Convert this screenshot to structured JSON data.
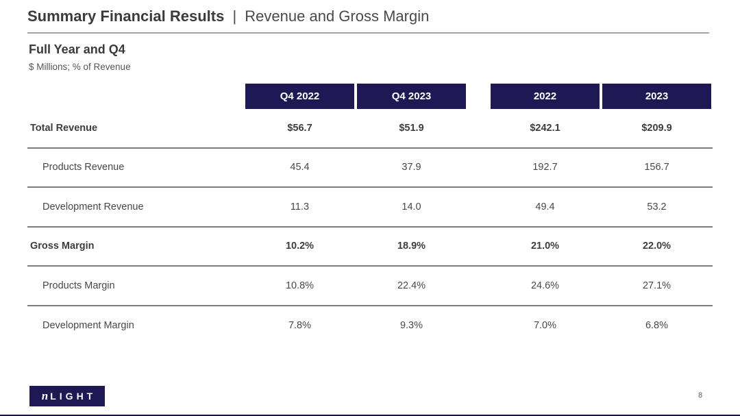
{
  "slide": {
    "title_main": "Summary Financial Results",
    "title_separator": "|",
    "title_sub": "Revenue and Gross Margin",
    "section_heading": "Full Year and Q4",
    "section_subheading": "$ Millions; % of Revenue",
    "page_number": "8",
    "logo": {
      "prefix": "n",
      "rest": "LIGHT"
    }
  },
  "colors": {
    "header_navy": "#1e1955",
    "title_text": "#3b3b3b",
    "body_text": "#474747",
    "title_rule": "#a3a3a3",
    "row_rule": "#7b7b7b"
  },
  "table": {
    "columns": [
      "Q4 2022",
      "Q4 2023",
      "2022",
      "2023"
    ],
    "rows": [
      {
        "label": "Total Revenue",
        "values": [
          "$56.7",
          "$51.9",
          "$242.1",
          "$209.9"
        ],
        "bold": true,
        "indent": false
      },
      {
        "label": "Products Revenue",
        "values": [
          "45.4",
          "37.9",
          "192.7",
          "156.7"
        ],
        "bold": false,
        "indent": true
      },
      {
        "label": "Development Revenue",
        "values": [
          "11.3",
          "14.0",
          "49.4",
          "53.2"
        ],
        "bold": false,
        "indent": true
      },
      {
        "label": "Gross Margin",
        "values": [
          "10.2%",
          "18.9%",
          "21.0%",
          "22.0%"
        ],
        "bold": true,
        "indent": false
      },
      {
        "label": "Products Margin",
        "values": [
          "10.8%",
          "22.4%",
          "24.6%",
          "27.1%"
        ],
        "bold": false,
        "indent": true
      },
      {
        "label": "Development Margin",
        "values": [
          "7.8%",
          "9.3%",
          "7.0%",
          "6.8%"
        ],
        "bold": false,
        "indent": true
      }
    ]
  }
}
